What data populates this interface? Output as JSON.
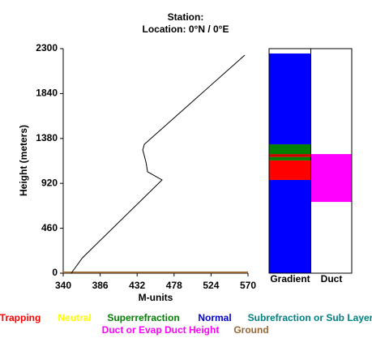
{
  "chart_data": {
    "type": "line",
    "title": "Station:",
    "subtitle": "Location:   0°N /   0°E",
    "x_label": "M-units",
    "y_label": "Height (meters)",
    "xlim": [
      340,
      570
    ],
    "ylim": [
      0,
      2300
    ],
    "xticks": [
      340,
      386,
      432,
      478,
      524,
      570
    ],
    "yticks": [
      0,
      460,
      920,
      1380,
      1840,
      2300
    ],
    "series": [
      {
        "color": "#000000",
        "x": [
          350,
          364,
          463,
          445,
          443,
          439,
          441,
          566
        ],
        "values": [
          0,
          158,
          955,
          1038,
          1138,
          1262,
          1320,
          2234
        ]
      }
    ],
    "ground_color": "#996633",
    "gradient_label": "Gradient",
    "duct_label": "Duct",
    "gradient_layers": [
      {
        "from": 0,
        "to": 955,
        "color": "#0000ff"
      },
      {
        "from": 955,
        "to": 1155,
        "color": "#ff0000"
      },
      {
        "from": 1155,
        "to": 1190,
        "color": "#008000"
      },
      {
        "from": 1190,
        "to": 1220,
        "color": "#cc0000"
      },
      {
        "from": 1220,
        "to": 1320,
        "color": "#008000"
      },
      {
        "from": 1320,
        "to": 2250,
        "color": "#0000ff"
      }
    ],
    "duct_layers": [
      {
        "from": 730,
        "to": 1220,
        "color": "#ff00ff"
      }
    ],
    "legend": [
      {
        "label": "Trapping",
        "color": "#ff0000"
      },
      {
        "label": "Neutral",
        "color": "#ffff00"
      },
      {
        "label": "Superrefraction",
        "color": "#008000"
      },
      {
        "label": "Normal",
        "color": "#0000cc"
      },
      {
        "label": "Subrefraction or Sub Layer",
        "color": "#008080"
      },
      {
        "label": "Duct or Evap Duct Height",
        "color": "#ff00ff"
      },
      {
        "label": "Ground",
        "color": "#996633"
      }
    ]
  }
}
